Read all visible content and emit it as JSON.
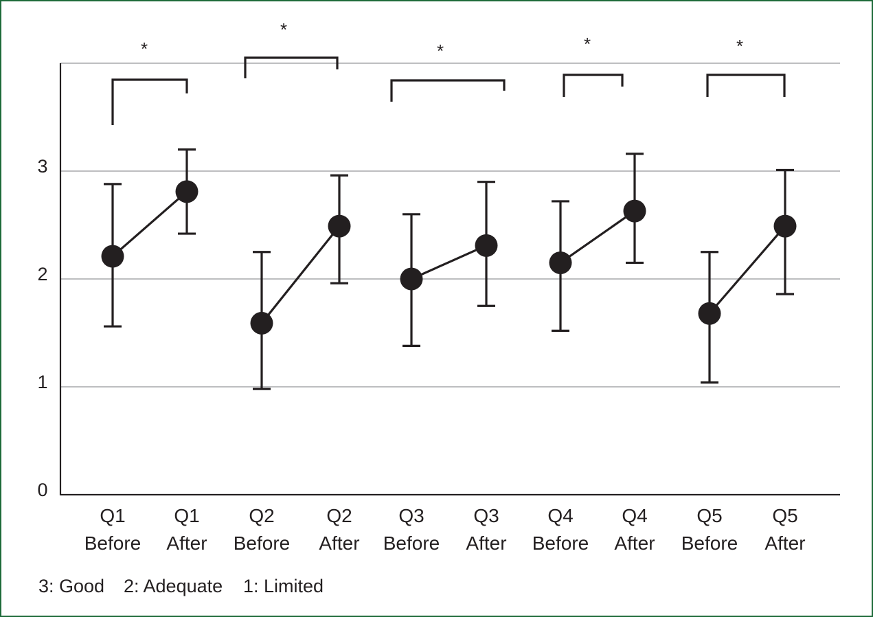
{
  "chart_data": {
    "type": "line",
    "y_ticks": [
      "0",
      "1",
      "2",
      "3"
    ],
    "ylim": [
      0,
      4
    ],
    "grid": true,
    "categories": [
      [
        "Q1",
        "Before"
      ],
      [
        "Q1",
        "After"
      ],
      [
        "Q2",
        "Before"
      ],
      [
        "Q2",
        "After"
      ],
      [
        "Q3",
        "Before"
      ],
      [
        "Q3",
        "After"
      ],
      [
        "Q4",
        "Before"
      ],
      [
        "Q4",
        "After"
      ],
      [
        "Q5",
        "Before"
      ],
      [
        "Q5",
        "After"
      ]
    ],
    "pairs": [
      {
        "group": "Q1",
        "before": {
          "mean": 2.21,
          "low": 1.56,
          "high": 2.88
        },
        "after": {
          "mean": 2.81,
          "low": 2.42,
          "high": 3.2
        },
        "significance": "*"
      },
      {
        "group": "Q2",
        "before": {
          "mean": 1.59,
          "low": 0.98,
          "high": 2.25
        },
        "after": {
          "mean": 2.49,
          "low": 1.96,
          "high": 2.96
        },
        "significance": "*"
      },
      {
        "group": "Q3",
        "before": {
          "mean": 2.0,
          "low": 1.38,
          "high": 2.6
        },
        "after": {
          "mean": 2.31,
          "low": 1.75,
          "high": 2.9
        },
        "significance": "*"
      },
      {
        "group": "Q4",
        "before": {
          "mean": 2.15,
          "low": 1.52,
          "high": 2.72
        },
        "after": {
          "mean": 2.63,
          "low": 2.15,
          "high": 3.16
        },
        "significance": "*"
      },
      {
        "group": "Q5",
        "before": {
          "mean": 1.68,
          "low": 1.04,
          "high": 2.25
        },
        "after": {
          "mean": 2.49,
          "low": 1.86,
          "high": 3.01
        },
        "significance": "*"
      }
    ],
    "legend_items": [
      "3: Good",
      "2: Adequate",
      "1: Limited"
    ],
    "colors": {
      "marker": "#231f20",
      "gridline": "#a7a9ac",
      "frame": "#1e6b3a"
    }
  }
}
